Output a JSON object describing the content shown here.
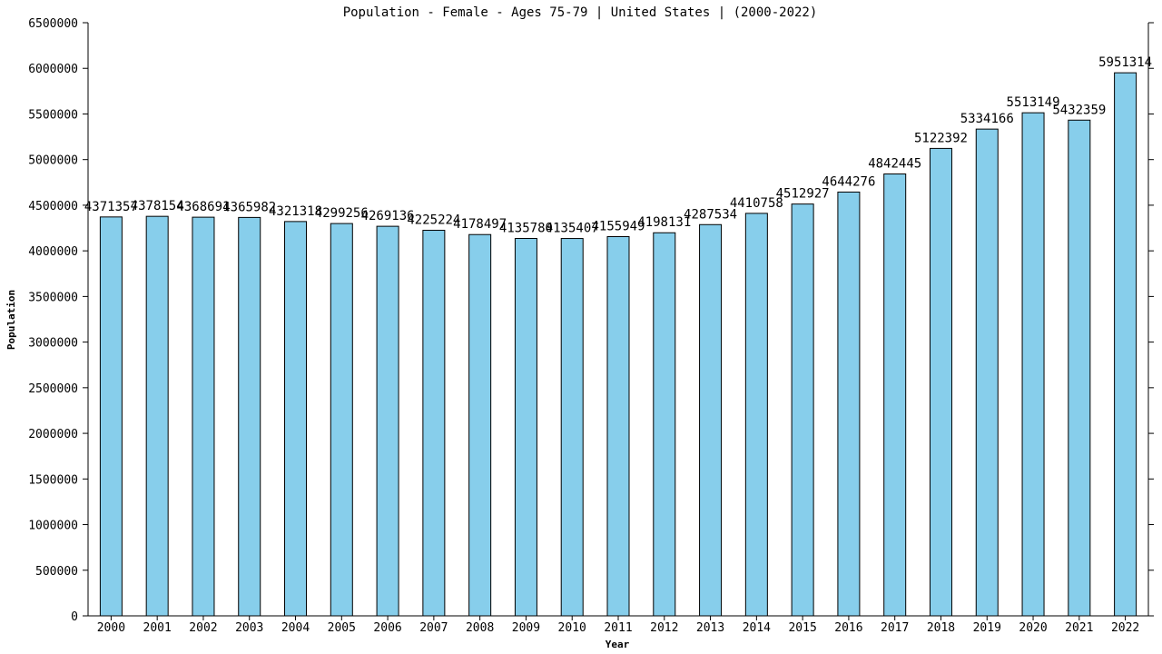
{
  "chart_data": {
    "type": "bar",
    "title": "Population - Female - Ages 75-79 | United States |  (2000-2022)",
    "xlabel": "Year",
    "ylabel": "Population",
    "ylim": [
      0,
      6500000
    ],
    "yticks": [
      0,
      500000,
      1000000,
      1500000,
      2000000,
      2500000,
      3000000,
      3500000,
      4000000,
      4500000,
      5000000,
      5500000,
      6000000,
      6500000
    ],
    "grid": false,
    "bar_color": "#87CEEB",
    "categories": [
      "2000",
      "2001",
      "2002",
      "2003",
      "2004",
      "2005",
      "2006",
      "2007",
      "2008",
      "2009",
      "2010",
      "2011",
      "2012",
      "2013",
      "2014",
      "2015",
      "2016",
      "2017",
      "2018",
      "2019",
      "2020",
      "2021",
      "2022"
    ],
    "values": [
      4371357,
      4378154,
      4368691,
      4365982,
      4321318,
      4299256,
      4269136,
      4225224,
      4178497,
      4135780,
      4135407,
      4155949,
      4198131,
      4287534,
      4410758,
      4512927,
      4644276,
      4842445,
      5122392,
      5334166,
      5513149,
      5432359,
      5951314
    ]
  }
}
